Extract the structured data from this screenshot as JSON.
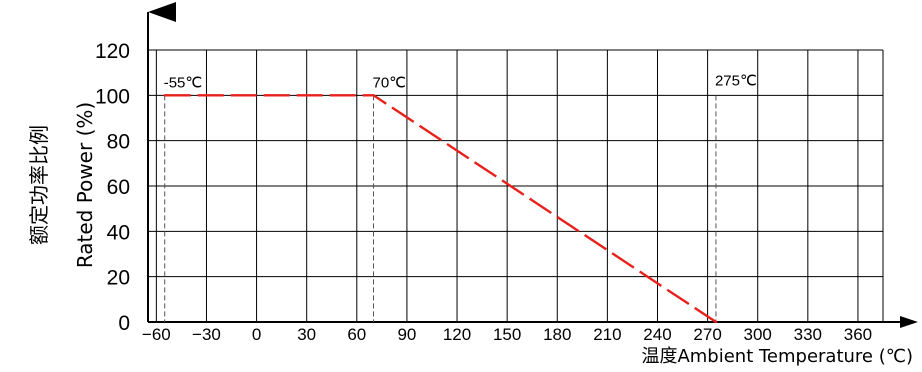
{
  "chart_data": {
    "type": "line",
    "xlabel": "温度Ambient Temperature (℃)",
    "ylabel_cn": "额定功率比例",
    "ylabel": "Rated Power (%)",
    "x_ticks": [
      -60,
      -30,
      0,
      30,
      60,
      90,
      120,
      150,
      180,
      210,
      240,
      270,
      300,
      330,
      360
    ],
    "y_ticks": [
      0,
      20,
      40,
      60,
      80,
      100,
      120
    ],
    "xlim": [
      -65,
      375
    ],
    "ylim": [
      0,
      120
    ],
    "grid": true,
    "series": [
      {
        "color": "#e8211b",
        "style": "dashed",
        "points": [
          [
            -55,
            100
          ],
          [
            70,
            100
          ],
          [
            275,
            0
          ]
        ]
      }
    ],
    "annotations": [
      {
        "label": "-55℃",
        "x": -55,
        "y": 100
      },
      {
        "label": "70℃",
        "x": 70,
        "y": 100
      },
      {
        "label": "275℃",
        "x": 275,
        "y": 0
      }
    ]
  }
}
